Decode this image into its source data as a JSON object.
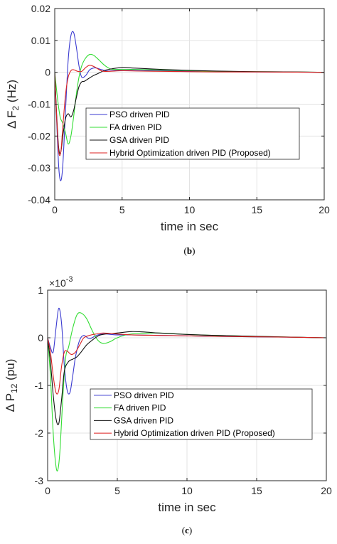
{
  "chart_data": [
    {
      "type": "line",
      "panel_label": "(b)",
      "xlabel": "time in sec",
      "ylabel_main": "Δ F",
      "ylabel_sub": "2",
      "ylabel_unit": " (Hz)",
      "xlim": [
        0,
        20
      ],
      "ylim": [
        -0.04,
        0.02
      ],
      "xticks": [
        0,
        5,
        10,
        15,
        20
      ],
      "xtick_labels": [
        "0",
        "5",
        "10",
        "15",
        "20"
      ],
      "yticks": [
        -0.04,
        -0.03,
        -0.02,
        -0.01,
        0,
        0.01,
        0.02
      ],
      "ytick_labels": [
        "-0.04",
        "-0.03",
        "-0.02",
        "-0.01",
        "0",
        "0.01",
        "0.02"
      ],
      "grid": true,
      "legend_position": "center",
      "series": [
        {
          "name": "PSO driven PID",
          "color": "#3a3ad0",
          "x": [
            0,
            0.15,
            0.3,
            0.45,
            0.6,
            0.8,
            1.0,
            1.2,
            1.4,
            1.6,
            1.8,
            2.0,
            2.3,
            2.6,
            3.0,
            3.5,
            4.0,
            5,
            6,
            8,
            10,
            12,
            15,
            18,
            20
          ],
          "y": [
            0,
            -0.016,
            -0.03,
            -0.034,
            -0.029,
            -0.012,
            0.004,
            0.0115,
            0.0125,
            0.008,
            0.002,
            -0.0015,
            -0.001,
            0.0008,
            0.0014,
            0.0008,
            0.0004,
            0.0008,
            0.0007,
            0.0005,
            0.0003,
            0.0002,
            0.0001,
            5e-05,
            0
          ]
        },
        {
          "name": "FA driven PID",
          "color": "#33dd33",
          "x": [
            0,
            0.2,
            0.4,
            0.6,
            0.8,
            1.0,
            1.2,
            1.4,
            1.6,
            1.8,
            2.0,
            2.3,
            2.6,
            2.9,
            3.3,
            3.7,
            4.2,
            5,
            6,
            8,
            10,
            12,
            15,
            18,
            20
          ],
          "y": [
            0,
            -0.008,
            -0.014,
            -0.016,
            -0.019,
            -0.0225,
            -0.02,
            -0.014,
            -0.007,
            -0.0015,
            0.002,
            0.0045,
            0.0056,
            0.0053,
            0.0038,
            0.0022,
            0.001,
            0.0009,
            0.0009,
            0.0007,
            0.0005,
            0.0003,
            0.0002,
            0.0001,
            0
          ]
        },
        {
          "name": "GSA driven PID",
          "color": "#111111",
          "x": [
            0,
            0.15,
            0.3,
            0.45,
            0.6,
            0.8,
            1.0,
            1.2,
            1.4,
            1.6,
            1.8,
            2.0,
            2.2,
            2.5,
            2.8,
            3.2,
            3.6,
            4.0,
            5,
            6,
            8,
            10,
            12,
            15,
            18,
            20
          ],
          "y": [
            0,
            -0.014,
            -0.024,
            -0.025,
            -0.02,
            -0.0145,
            -0.013,
            -0.014,
            -0.012,
            -0.008,
            -0.0045,
            -0.003,
            -0.0028,
            -0.002,
            -0.0012,
            -0.0004,
            0.0004,
            0.0009,
            0.0015,
            0.0013,
            0.0009,
            0.0006,
            0.0004,
            0.0002,
            0.0001,
            0
          ]
        },
        {
          "name": "Hybrid Optimization driven PID (Proposed)",
          "color": "#dd2222",
          "x": [
            0,
            0.15,
            0.3,
            0.45,
            0.6,
            0.8,
            1.0,
            1.2,
            1.4,
            1.7,
            2.0,
            2.3,
            2.6,
            3.0,
            3.5,
            4.0,
            5,
            6,
            8,
            10,
            12,
            15,
            18,
            20
          ],
          "y": [
            0,
            -0.015,
            -0.025,
            -0.025,
            -0.017,
            -0.007,
            -0.0015,
            0.0005,
            0.0008,
            0.0003,
            0.0003,
            0.0015,
            0.0022,
            0.0016,
            0.0004,
            0.0003,
            0.0005,
            0.0004,
            0.0003,
            0.0002,
            0.0001,
            0.0001,
            5e-05,
            0
          ]
        }
      ]
    },
    {
      "type": "line",
      "panel_label": "(c)",
      "xlabel": "time in sec",
      "ylabel_main": "Δ P",
      "ylabel_sub": "12",
      "ylabel_unit": " (pu)",
      "scale_main": "×10",
      "scale_exp": "-3",
      "xlim": [
        0,
        20
      ],
      "ylim": [
        -3,
        1
      ],
      "xticks": [
        0,
        5,
        10,
        15,
        20
      ],
      "xtick_labels": [
        "0",
        "5",
        "10",
        "15",
        "20"
      ],
      "yticks": [
        -3,
        -2,
        -1,
        0,
        1
      ],
      "ytick_labels": [
        "-3",
        "-2",
        "-1",
        "0",
        "1"
      ],
      "grid": true,
      "legend_position": "lower-right",
      "series": [
        {
          "name": "PSO driven PID",
          "color": "#3a3ad0",
          "x": [
            0,
            0.2,
            0.4,
            0.6,
            0.8,
            1.0,
            1.2,
            1.4,
            1.6,
            1.8,
            2.0,
            2.3,
            2.6,
            3.0,
            3.5,
            4.0,
            5,
            6,
            8,
            10,
            12,
            15,
            18,
            20
          ],
          "y": [
            0,
            -0.2,
            -0.3,
            0.2,
            0.62,
            0.3,
            -0.6,
            -1.1,
            -1.15,
            -0.8,
            -0.4,
            -0.05,
            0.05,
            -0.02,
            0.05,
            0.08,
            0.06,
            0.06,
            0.05,
            0.04,
            0.03,
            0.02,
            0.01,
            0
          ]
        },
        {
          "name": "FA driven PID",
          "color": "#33dd33",
          "x": [
            0,
            0.2,
            0.4,
            0.6,
            0.75,
            0.9,
            1.1,
            1.3,
            1.5,
            1.8,
            2.1,
            2.4,
            2.8,
            3.2,
            3.6,
            4.0,
            4.5,
            5,
            6,
            8,
            10,
            12,
            15,
            18,
            20
          ],
          "y": [
            0,
            -0.8,
            -2.0,
            -2.7,
            -2.75,
            -2.3,
            -1.2,
            -0.4,
            -0.2,
            0.2,
            0.48,
            0.52,
            0.4,
            0.15,
            -0.05,
            -0.12,
            -0.08,
            0.0,
            0.08,
            0.1,
            0.07,
            0.05,
            0.03,
            0.01,
            0
          ]
        },
        {
          "name": "GSA driven PID",
          "color": "#111111",
          "x": [
            0,
            0.2,
            0.4,
            0.6,
            0.8,
            1.0,
            1.2,
            1.5,
            1.8,
            2.1,
            2.4,
            2.8,
            3.2,
            3.7,
            4.2,
            5,
            6,
            7,
            8,
            10,
            12,
            15,
            18,
            20
          ],
          "y": [
            0,
            -0.5,
            -1.2,
            -1.7,
            -1.8,
            -1.3,
            -0.7,
            -0.5,
            -0.45,
            -0.4,
            -0.3,
            -0.15,
            -0.05,
            0.05,
            0.08,
            0.1,
            0.13,
            0.12,
            0.1,
            0.07,
            0.05,
            0.03,
            0.01,
            0
          ]
        },
        {
          "name": "Hybrid Optimization driven PID (Proposed)",
          "color": "#dd2222",
          "x": [
            0,
            0.2,
            0.4,
            0.6,
            0.8,
            1.0,
            1.2,
            1.4,
            1.7,
            2.0,
            2.3,
            2.6,
            3.0,
            3.5,
            4.0,
            5,
            6,
            8,
            10,
            12,
            15,
            18,
            20
          ],
          "y": [
            0,
            -0.3,
            -0.8,
            -1.15,
            -1.1,
            -0.6,
            -0.3,
            -0.28,
            -0.35,
            -0.3,
            -0.15,
            0.0,
            0.05,
            0.08,
            0.1,
            0.08,
            0.06,
            0.05,
            0.04,
            0.03,
            0.02,
            0.01,
            0
          ]
        }
      ]
    }
  ]
}
